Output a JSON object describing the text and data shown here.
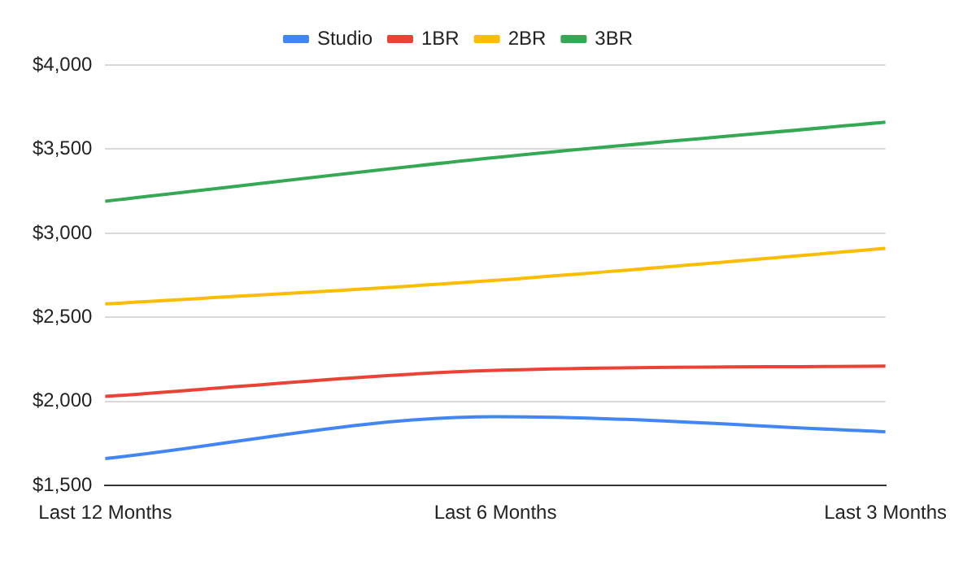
{
  "chart_data": {
    "type": "line",
    "categories": [
      "Last 12 Months",
      "Last 6 Months",
      "Last 3 Months"
    ],
    "series": [
      {
        "name": "Studio",
        "color": "#4285f4",
        "values": [
          1660,
          1910,
          1820
        ]
      },
      {
        "name": "1BR",
        "color": "#ea4335",
        "values": [
          2030,
          2185,
          2210
        ]
      },
      {
        "name": "2BR",
        "color": "#fbbc04",
        "values": [
          2580,
          2720,
          2910
        ]
      },
      {
        "name": "3BR",
        "color": "#34a853",
        "values": [
          3190,
          3450,
          3660
        ]
      }
    ],
    "ylim": [
      1500,
      4000
    ],
    "yticks": [
      {
        "value": 1500,
        "label": "$1,500"
      },
      {
        "value": 2000,
        "label": "$2,000"
      },
      {
        "value": 2500,
        "label": "$2,500"
      },
      {
        "value": 3000,
        "label": "$3,000"
      },
      {
        "value": 3500,
        "label": "$3,500"
      },
      {
        "value": 4000,
        "label": "$4,000"
      }
    ],
    "grid": "y",
    "legend": "top",
    "marker": "none",
    "line_style": "solid"
  }
}
